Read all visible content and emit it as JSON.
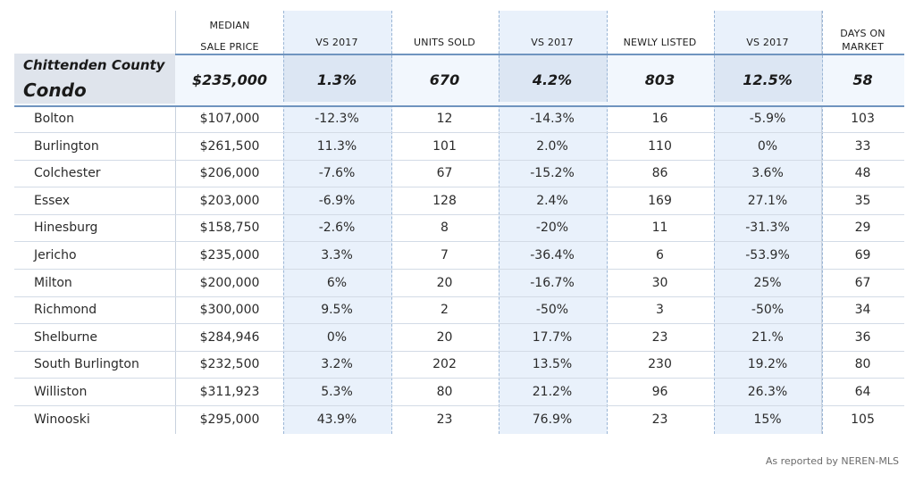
{
  "headers": {
    "median_line1": "MEDIAN",
    "median_line2": "SALE PRICE",
    "vs1": "VS 2017",
    "units": "UNITS SOLD",
    "vs2": "VS 2017",
    "newly": "NEWLY LISTED",
    "vs3": "VS 2017",
    "dom_line1": "DAYS ON",
    "dom_line2": "MARKET"
  },
  "summary": {
    "county": "Chittenden County",
    "type": "Condo",
    "median": "$235,000",
    "vs1": "1.3%",
    "units": "670",
    "vs2": "4.2%",
    "newly": "803",
    "vs3": "12.5%",
    "dom": "58"
  },
  "rows": [
    {
      "town": "Bolton",
      "median": "$107,000",
      "vs1": "-12.3%",
      "units": "12",
      "vs2": "-14.3%",
      "newly": "16",
      "vs3": "-5.9%",
      "dom": "103"
    },
    {
      "town": "Burlington",
      "median": "$261,500",
      "vs1": "11.3%",
      "units": "101",
      "vs2": "2.0%",
      "newly": "110",
      "vs3": "0%",
      "dom": "33"
    },
    {
      "town": "Colchester",
      "median": "$206,000",
      "vs1": "-7.6%",
      "units": "67",
      "vs2": "-15.2%",
      "newly": "86",
      "vs3": "3.6%",
      "dom": "48"
    },
    {
      "town": "Essex",
      "median": "$203,000",
      "vs1": "-6.9%",
      "units": "128",
      "vs2": "2.4%",
      "newly": "169",
      "vs3": "27.1%",
      "dom": "35"
    },
    {
      "town": "Hinesburg",
      "median": "$158,750",
      "vs1": "-2.6%",
      "units": "8",
      "vs2": "-20%",
      "newly": "11",
      "vs3": "-31.3%",
      "dom": "29"
    },
    {
      "town": "Jericho",
      "median": "$235,000",
      "vs1": "3.3%",
      "units": "7",
      "vs2": "-36.4%",
      "newly": "6",
      "vs3": "-53.9%",
      "dom": "69"
    },
    {
      "town": "Milton",
      "median": "$200,000",
      "vs1": "6%",
      "units": "20",
      "vs2": "-16.7%",
      "newly": "30",
      "vs3": "25%",
      "dom": "67"
    },
    {
      "town": "Richmond",
      "median": "$300,000",
      "vs1": "9.5%",
      "units": "2",
      "vs2": "-50%",
      "newly": "3",
      "vs3": "-50%",
      "dom": "34"
    },
    {
      "town": "Shelburne",
      "median": "$284,946",
      "vs1": "0%",
      "units": "20",
      "vs2": "17.7%",
      "newly": "23",
      "vs3": "21.%",
      "dom": "36"
    },
    {
      "town": "South Burlington",
      "median": "$232,500",
      "vs1": "3.2%",
      "units": "202",
      "vs2": "13.5%",
      "newly": "230",
      "vs3": "19.2%",
      "dom": "80"
    },
    {
      "town": "Williston",
      "median": "$311,923",
      "vs1": "5.3%",
      "units": "80",
      "vs2": "21.2%",
      "newly": "96",
      "vs3": "26.3%",
      "dom": "64"
    },
    {
      "town": "Winooski",
      "median": "$295,000",
      "vs1": "43.9%",
      "units": "23",
      "vs2": "76.9%",
      "newly": "23",
      "vs3": "15%",
      "dom": "105"
    }
  ],
  "source": "As reported by NEREN-MLS",
  "colors": {
    "band": "#e9f1fb",
    "summary_bg": "#f2f7fd",
    "county_bg": "#dfe4ec",
    "accent_border": "#6f94bf"
  }
}
